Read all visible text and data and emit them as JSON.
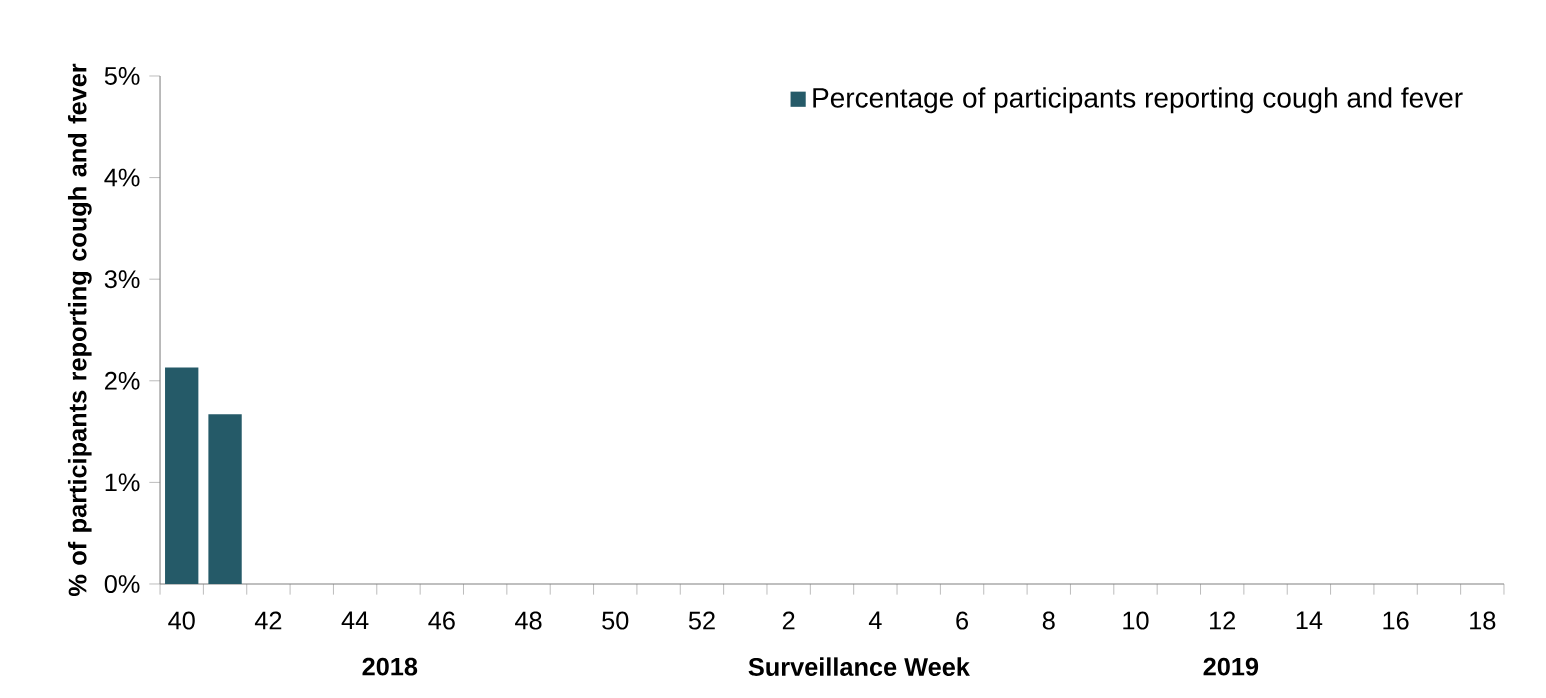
{
  "chart_data": {
    "type": "bar",
    "xlabel": "Surveillance Week",
    "ylabel": "% of participants reporting cough and fever",
    "categories": [
      "40",
      null,
      "42",
      null,
      "44",
      null,
      "46",
      null,
      "48",
      null,
      "50",
      null,
      "52",
      null,
      "2",
      null,
      "4",
      null,
      "6",
      null,
      "8",
      null,
      "10",
      null,
      "12",
      null,
      "14",
      null,
      "16",
      null,
      "18"
    ],
    "series": [
      {
        "name": "Percentage of participants reporting cough and fever",
        "color": "#255a68",
        "values": [
          2.13,
          1.67,
          null,
          null,
          null,
          null,
          null,
          null,
          null,
          null,
          null,
          null,
          null,
          null,
          null,
          null,
          null,
          null,
          null,
          null,
          null,
          null,
          null,
          null,
          null,
          null,
          null,
          null,
          null,
          null,
          null
        ]
      }
    ],
    "ylim": [
      0,
      5
    ],
    "yticks": [
      {
        "value": 0,
        "label": "0%"
      },
      {
        "value": 1,
        "label": "1%"
      },
      {
        "value": 2,
        "label": "2%"
      },
      {
        "value": 3,
        "label": "3%"
      },
      {
        "value": 4,
        "label": "4%"
      },
      {
        "value": 5,
        "label": "5%"
      }
    ],
    "annotations": [
      "2018",
      "2019"
    ],
    "legend": "top right",
    "grid": false
  }
}
